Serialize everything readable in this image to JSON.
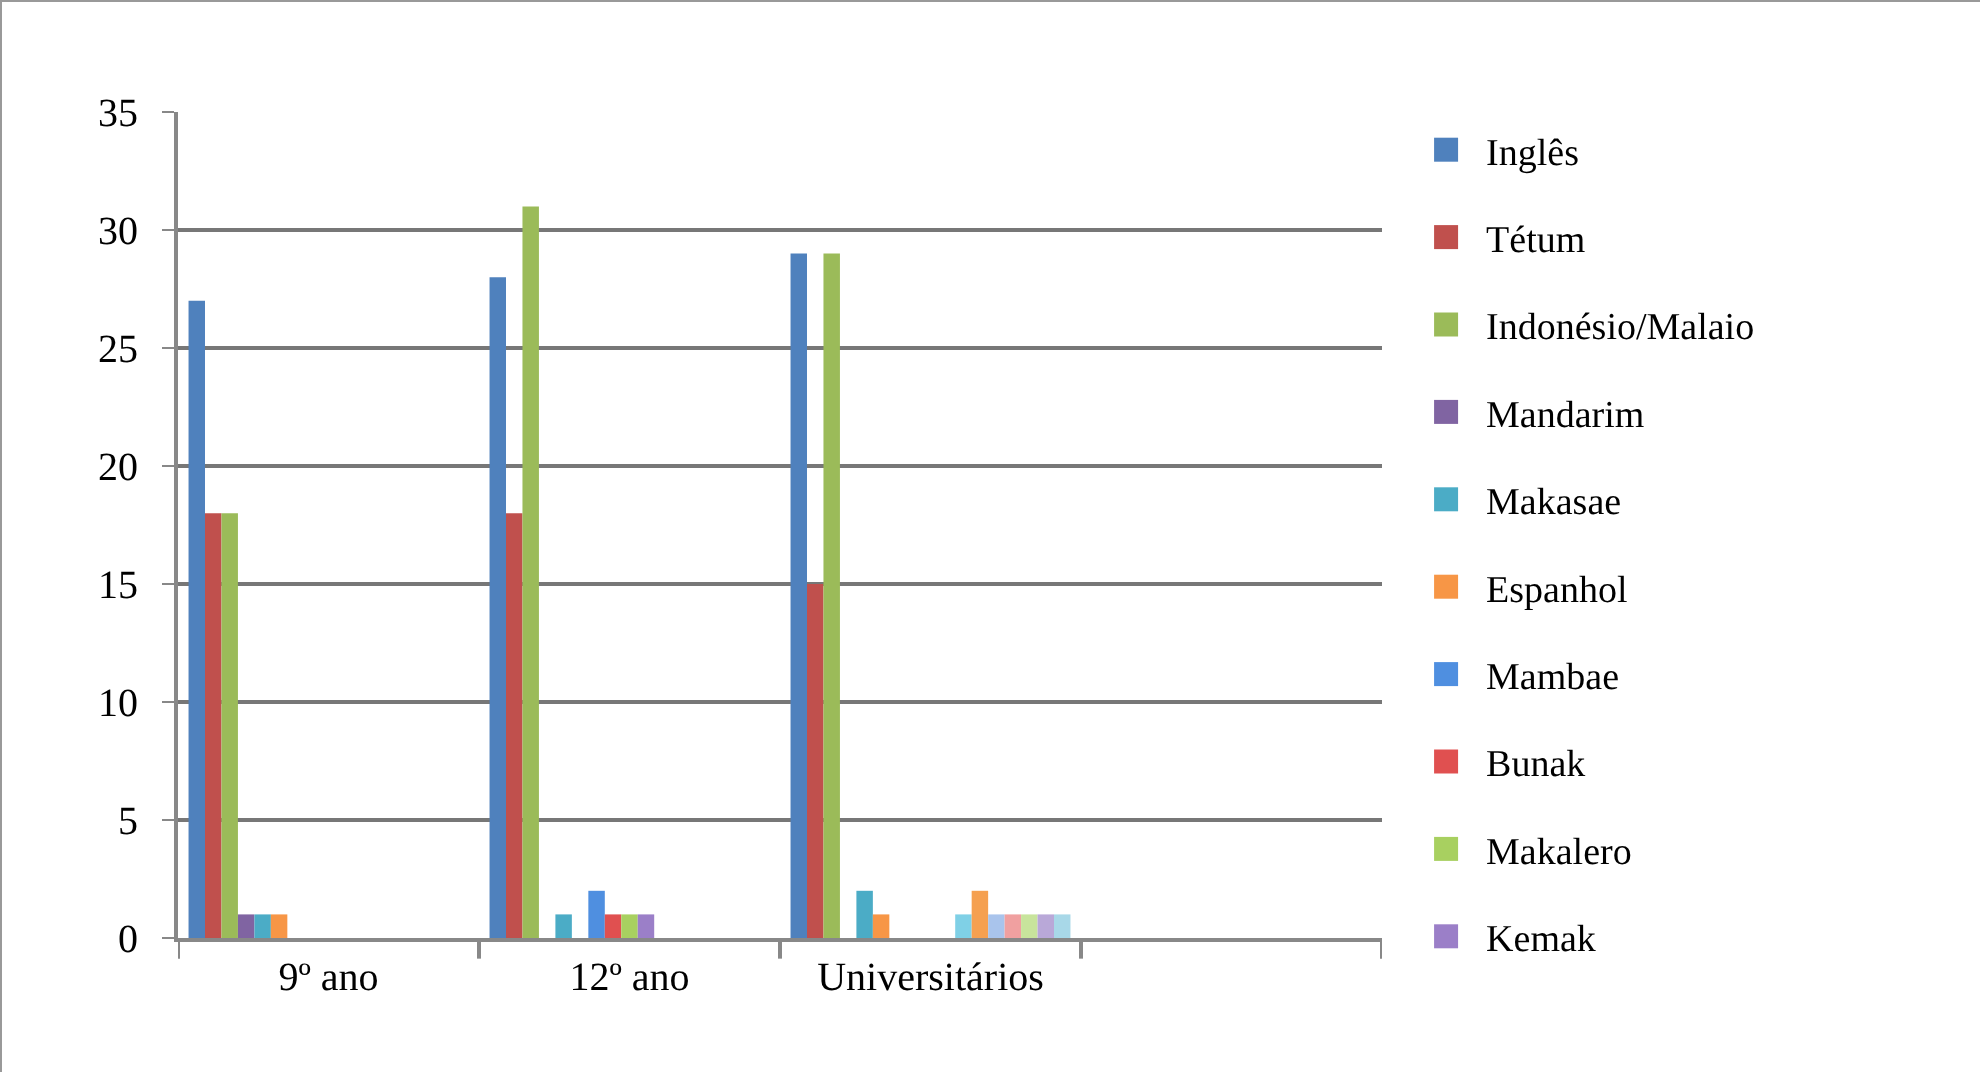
{
  "chart_data": {
    "type": "bar",
    "categories": [
      "9º ano",
      "12º ano",
      "Universitários",
      null
    ],
    "series": [
      {
        "name": "Inglês",
        "color": "#4f81bd",
        "values": [
          27,
          28,
          29,
          null
        ]
      },
      {
        "name": "Tétum",
        "color": "#c0504d",
        "values": [
          18,
          18,
          15,
          null
        ]
      },
      {
        "name": "Indonésio/Malaio",
        "color": "#9bbb59",
        "values": [
          18,
          31,
          29,
          null
        ]
      },
      {
        "name": "Mandarim",
        "color": "#8064a2",
        "values": [
          1,
          0,
          0,
          null
        ]
      },
      {
        "name": "Makasae",
        "color": "#4bacc6",
        "values": [
          1,
          1,
          2,
          null
        ]
      },
      {
        "name": "Espanhol",
        "color": "#f79646",
        "values": [
          1,
          0,
          1,
          null
        ]
      },
      {
        "name": "Mambae",
        "color": "#4f8fe0",
        "values": [
          0,
          2,
          0,
          null
        ]
      },
      {
        "name": "Bunak",
        "color": "#e05050",
        "values": [
          0,
          1,
          0,
          null
        ]
      },
      {
        "name": "Makalero",
        "color": "#a8d060",
        "values": [
          0,
          1,
          0,
          null
        ]
      },
      {
        "name": "Kemak",
        "color": "#9b7fc8",
        "values": [
          0,
          1,
          0,
          null
        ]
      },
      {
        "color": "#7fd0e6",
        "values": [
          0,
          0,
          1,
          null
        ]
      },
      {
        "color": "#f5a050",
        "values": [
          0,
          0,
          2,
          null
        ]
      },
      {
        "color": "#a9c4ec",
        "values": [
          0,
          0,
          1,
          null
        ]
      },
      {
        "color": "#f0a0a0",
        "values": [
          0,
          0,
          1,
          null
        ]
      },
      {
        "color": "#c8e49c",
        "values": [
          0,
          0,
          1,
          null
        ]
      },
      {
        "color": "#b9a8d8",
        "values": [
          0,
          0,
          1,
          null
        ]
      },
      {
        "color": "#a8d8e8",
        "values": [
          0,
          0,
          1,
          null
        ]
      }
    ],
    "ylim": [
      0,
      35
    ],
    "yticks": [
      0,
      5,
      10,
      15,
      20,
      25,
      30,
      35
    ],
    "grid": "y",
    "legend": "right"
  }
}
